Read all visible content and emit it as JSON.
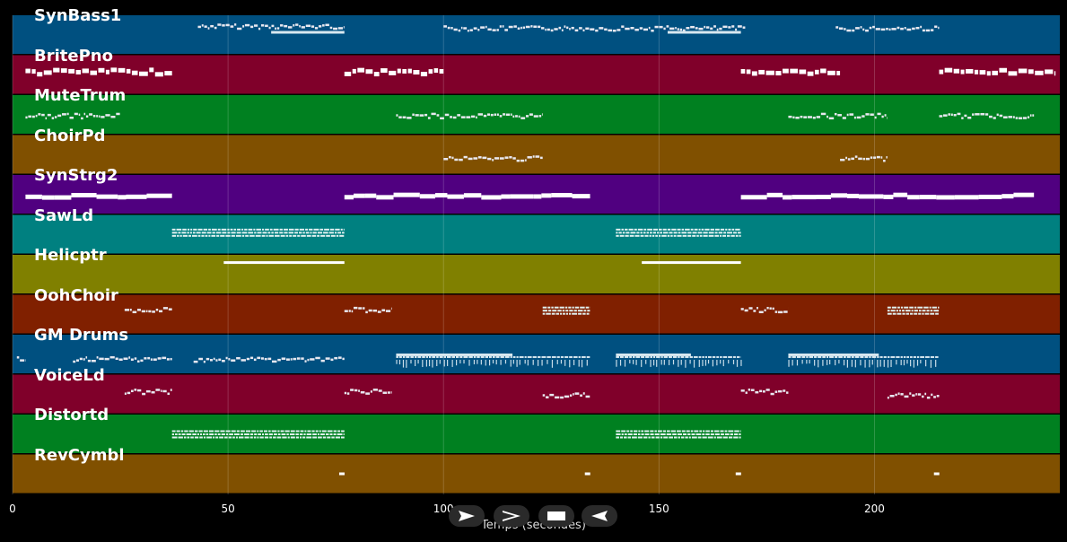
{
  "x_axis_title": "Temps (secondes)",
  "x_ticks": [
    "0",
    "50",
    "100",
    "150",
    "200"
  ],
  "x_tick_values": [
    0,
    50,
    100,
    150,
    200
  ],
  "time_range": [
    0,
    243
  ],
  "colors": {
    "background": "#000000",
    "grid": "#ffffff",
    "note": "#ffffff"
  },
  "controls": [
    {
      "name": "play-button",
      "icon": "play-icon"
    },
    {
      "name": "fast-forward-button",
      "icon": "fast-forward-icon"
    },
    {
      "name": "stop-button",
      "icon": "stop-icon"
    },
    {
      "name": "rewind-button",
      "icon": "rewind-icon"
    }
  ],
  "tracks": [
    {
      "name": "SynBass1",
      "color": "#005080",
      "segments": [
        {
          "start": 43,
          "end": 77,
          "style": "dense",
          "level": 0.7
        },
        {
          "start": 60,
          "end": 77,
          "style": "solid-thin",
          "level": 0.5
        },
        {
          "start": 100,
          "end": 170,
          "style": "dense",
          "level": 0.65
        },
        {
          "start": 152,
          "end": 169,
          "style": "solid-thin",
          "level": 0.5
        },
        {
          "start": 191,
          "end": 215,
          "style": "dense",
          "level": 0.65
        }
      ]
    },
    {
      "name": "BritePno",
      "color": "#80002a",
      "segments": [
        {
          "start": 3,
          "end": 37,
          "style": "blocks",
          "level": 0.55
        },
        {
          "start": 77,
          "end": 100,
          "style": "blocks",
          "level": 0.55
        },
        {
          "start": 169,
          "end": 192,
          "style": "blocks",
          "level": 0.55
        },
        {
          "start": 215,
          "end": 242,
          "style": "blocks",
          "level": 0.55
        }
      ]
    },
    {
      "name": "MuteTrum",
      "color": "#008020",
      "segments": [
        {
          "start": 3,
          "end": 25,
          "style": "dense",
          "level": 0.45
        },
        {
          "start": 89,
          "end": 123,
          "style": "dense",
          "level": 0.45
        },
        {
          "start": 180,
          "end": 203,
          "style": "dense",
          "level": 0.45
        },
        {
          "start": 215,
          "end": 237,
          "style": "dense",
          "level": 0.45
        }
      ]
    },
    {
      "name": "ChoirPd",
      "color": "#805000",
      "segments": [
        {
          "start": 100,
          "end": 123,
          "style": "dense",
          "level": 0.38
        },
        {
          "start": 192,
          "end": 203,
          "style": "dense",
          "level": 0.38
        }
      ]
    },
    {
      "name": "SynStrg2",
      "color": "#500080",
      "segments": [
        {
          "start": 3,
          "end": 37,
          "style": "thick",
          "level": 0.45
        },
        {
          "start": 77,
          "end": 134,
          "style": "thick",
          "level": 0.45
        },
        {
          "start": 169,
          "end": 237,
          "style": "thick",
          "level": 0.45
        }
      ]
    },
    {
      "name": "SawLd",
      "color": "#008080",
      "segments": [
        {
          "start": 37,
          "end": 77,
          "style": "stack",
          "level": 0.55
        },
        {
          "start": 140,
          "end": 169,
          "style": "stack",
          "level": 0.55
        }
      ]
    },
    {
      "name": "Helicptr",
      "color": "#808000",
      "segments": [
        {
          "start": 49,
          "end": 77,
          "style": "line",
          "level": 0.8
        },
        {
          "start": 146,
          "end": 169,
          "style": "line",
          "level": 0.8
        }
      ]
    },
    {
      "name": "OohChoir",
      "color": "#802000",
      "segments": [
        {
          "start": 26,
          "end": 37,
          "style": "dense",
          "level": 0.6
        },
        {
          "start": 77,
          "end": 88,
          "style": "dense",
          "level": 0.6
        },
        {
          "start": 123,
          "end": 134,
          "style": "stack",
          "level": 0.6
        },
        {
          "start": 169,
          "end": 180,
          "style": "dense",
          "level": 0.6
        },
        {
          "start": 203,
          "end": 215,
          "style": "stack",
          "level": 0.6
        }
      ]
    },
    {
      "name": "GM Drums",
      "color": "#005080",
      "segments": [
        {
          "start": 1,
          "end": 3,
          "style": "dense",
          "level": 0.35
        },
        {
          "start": 14,
          "end": 37,
          "style": "dense",
          "level": 0.35
        },
        {
          "start": 42,
          "end": 77,
          "style": "dense",
          "level": 0.35
        },
        {
          "start": 89,
          "end": 134,
          "style": "drums",
          "level": 0.35
        },
        {
          "start": 140,
          "end": 169,
          "style": "drums",
          "level": 0.35
        },
        {
          "start": 180,
          "end": 215,
          "style": "drums",
          "level": 0.35
        }
      ]
    },
    {
      "name": "VoiceLd",
      "color": "#80002a",
      "segments": [
        {
          "start": 26,
          "end": 37,
          "style": "dense",
          "level": 0.55
        },
        {
          "start": 77,
          "end": 88,
          "style": "dense",
          "level": 0.55
        },
        {
          "start": 123,
          "end": 134,
          "style": "dense",
          "level": 0.45
        },
        {
          "start": 169,
          "end": 180,
          "style": "dense",
          "level": 0.55
        },
        {
          "start": 203,
          "end": 215,
          "style": "dense",
          "level": 0.45
        }
      ]
    },
    {
      "name": "Distortd",
      "color": "#008020",
      "segments": [
        {
          "start": 37,
          "end": 77,
          "style": "stack",
          "level": 0.5
        },
        {
          "start": 140,
          "end": 169,
          "style": "stack",
          "level": 0.5
        }
      ]
    },
    {
      "name": "RevCymbl",
      "color": "#805000",
      "segments": [
        {
          "start": 76,
          "end": 77,
          "style": "dot",
          "level": 0.5
        },
        {
          "start": 133,
          "end": 134,
          "style": "dot",
          "level": 0.5
        },
        {
          "start": 168,
          "end": 169,
          "style": "dot",
          "level": 0.5
        },
        {
          "start": 214,
          "end": 215,
          "style": "dot",
          "level": 0.5
        }
      ]
    }
  ]
}
